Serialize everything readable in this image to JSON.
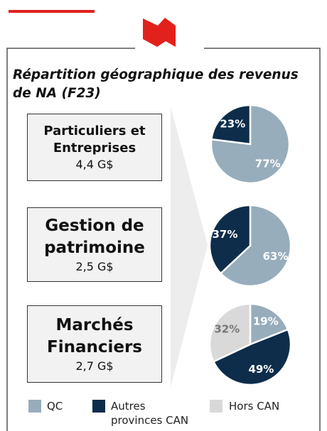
{
  "title": "Répartition géographique des revenus de NA (F23)",
  "segments": [
    {
      "name": "Particuliers et Entreprises",
      "amount": "4,4 G$"
    },
    {
      "name": "Gestion de patrimoine",
      "amount": "2,5 G$"
    },
    {
      "name": "Marchés Financiers",
      "amount": "2,7 G$"
    }
  ],
  "chart_data": [
    {
      "type": "pie",
      "categories": [
        "QC",
        "Autres provinces CAN"
      ],
      "values": [
        77,
        23
      ],
      "value_labels": [
        "77%",
        "23%"
      ],
      "colors": [
        "#97adbc",
        "#0d2d4b"
      ]
    },
    {
      "type": "pie",
      "categories": [
        "QC",
        "Autres provinces CAN"
      ],
      "values": [
        63,
        37
      ],
      "value_labels": [
        "63%",
        "37%"
      ],
      "colors": [
        "#97adbc",
        "#0d2d4b"
      ]
    },
    {
      "type": "pie",
      "categories": [
        "QC",
        "Autres provinces CAN",
        "Hors CAN"
      ],
      "values": [
        19,
        49,
        32
      ],
      "value_labels": [
        "19%",
        "49%",
        "32%"
      ],
      "colors": [
        "#97adbc",
        "#0d2d4b",
        "#d9d9d9"
      ]
    }
  ]
}
